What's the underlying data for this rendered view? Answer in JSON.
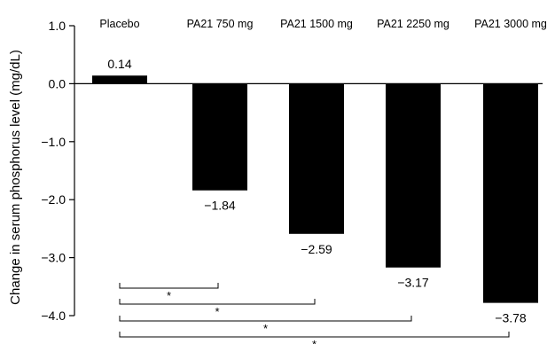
{
  "chart_data": {
    "type": "bar",
    "categories": [
      "Placebo",
      "PA21 750 mg",
      "PA21 1500 mg",
      "PA21 2250 mg",
      "PA21 3000 mg"
    ],
    "values": [
      0.14,
      -1.84,
      -2.59,
      -3.17,
      -3.78
    ],
    "data_labels": [
      "0.14",
      "−1.84",
      "−2.59",
      "−3.17",
      "−3.78"
    ],
    "ylabel": "Change in serum phosphorus level (mg/dL)",
    "ylim": [
      -4.0,
      1.0
    ],
    "yticks": [
      1.0,
      0.0,
      -1.0,
      -2.0,
      -3.0,
      -4.0
    ],
    "ytick_labels": [
      "1.0",
      "0.0",
      "−1.0",
      "−2.0",
      "−3.0",
      "−4.0"
    ],
    "bar_color": "#000000",
    "grid": false,
    "legend": "none",
    "significance": [
      {
        "from": "Placebo",
        "to": "PA21 750 mg",
        "label": "*"
      },
      {
        "from": "Placebo",
        "to": "PA21 1500 mg",
        "label": "*"
      },
      {
        "from": "Placebo",
        "to": "PA21 2250 mg",
        "label": "*"
      },
      {
        "from": "Placebo",
        "to": "PA21 3000 mg",
        "label": "*"
      }
    ]
  }
}
